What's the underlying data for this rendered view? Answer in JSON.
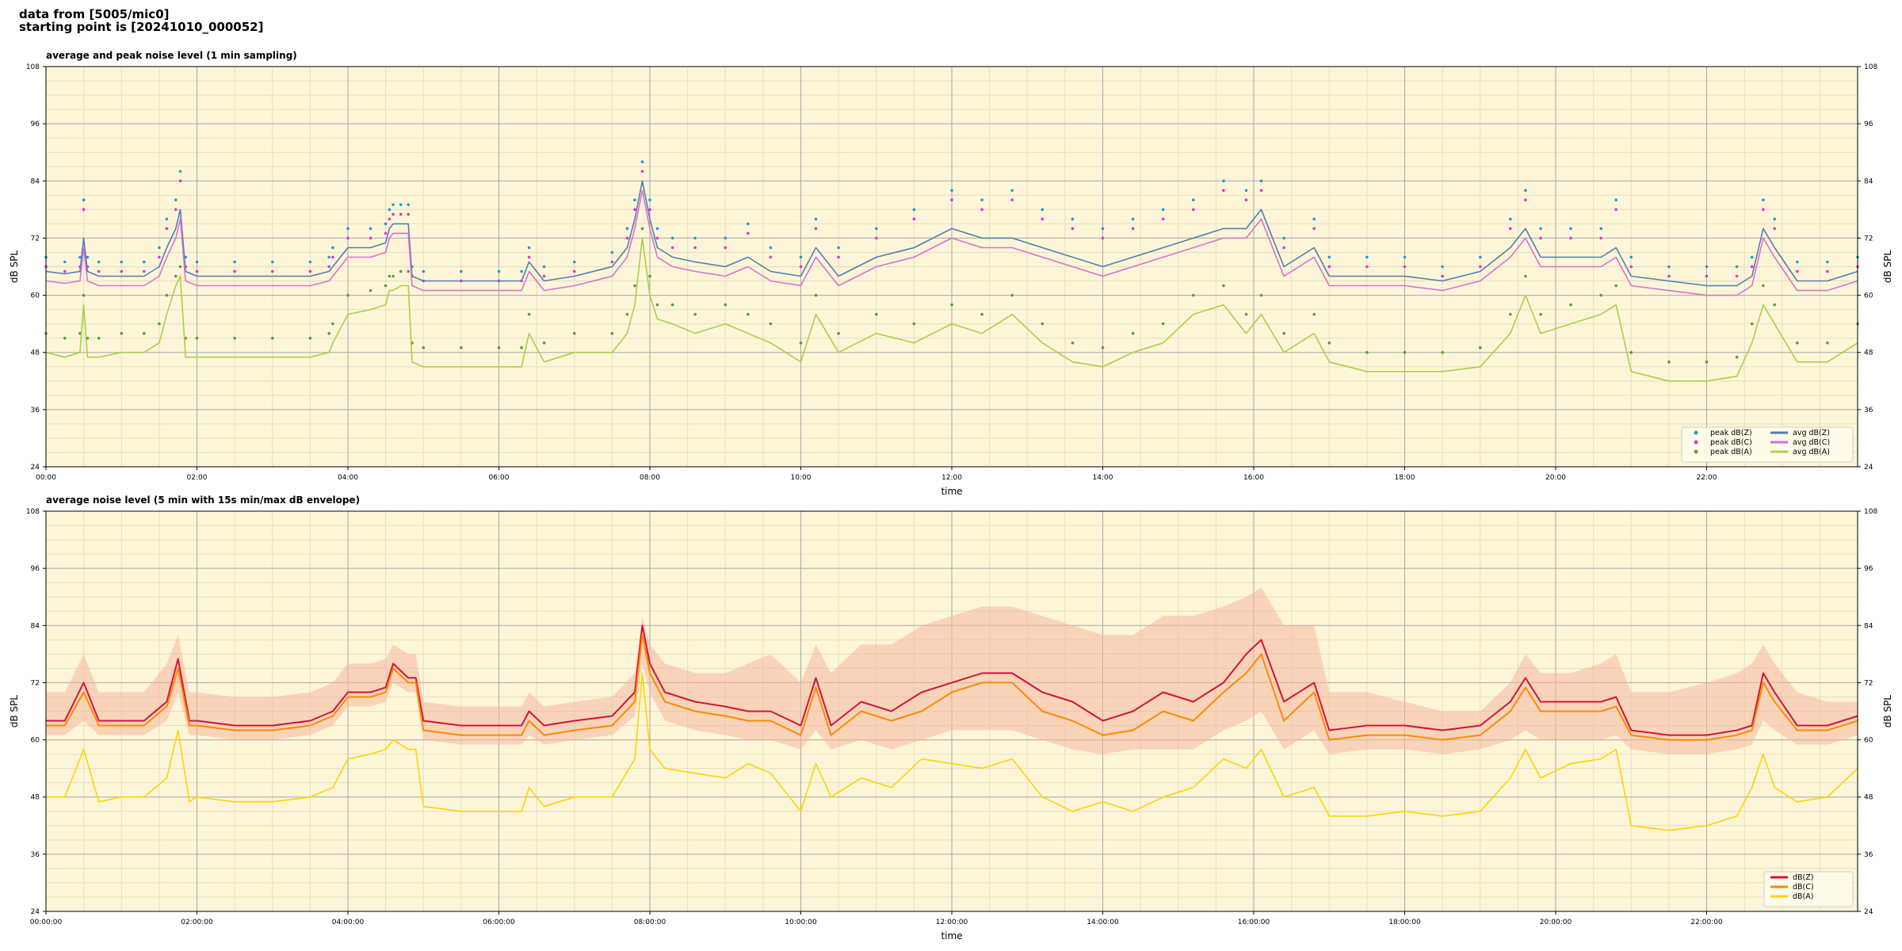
{
  "suptitle": {
    "line1": "data from [5005/mic0]",
    "line2": "starting point is [20241010_000052]"
  },
  "colors": {
    "plot_bg": "#fdf5d8",
    "grid_major": "#a8a8a8",
    "grid_minor": "#e6dcc0",
    "peak_z": "#1f9bd6",
    "peak_c": "#e531d0",
    "peak_a": "#5a9e3a",
    "avg_z": "#4f7fb2",
    "avg_c": "#d772cf",
    "avg_a": "#a8d145",
    "db_z": "#d2143a",
    "db_c": "#ff8a00",
    "db_a": "#ffd400",
    "envelope": "#f5b8a0"
  },
  "chart_data": [
    {
      "type": "line",
      "title": "average and peak noise level (1 min sampling)",
      "xlabel": "time",
      "ylabel": "dB SPL",
      "xlim": [
        0,
        24
      ],
      "ylim": [
        24,
        108
      ],
      "yticks": [
        24,
        36,
        48,
        60,
        72,
        84,
        96,
        108
      ],
      "xticks": [
        0,
        2,
        4,
        6,
        8,
        10,
        12,
        14,
        16,
        18,
        20,
        22
      ],
      "xtick_labels": [
        "00:00",
        "02:00",
        "04:00",
        "06:00",
        "08:00",
        "10:00",
        "12:00",
        "14:00",
        "16:00",
        "18:00",
        "20:00",
        "22:00"
      ],
      "grid": true,
      "legend_position": "lower-right",
      "legend": [
        "peak dB(Z)",
        "peak dB(C)",
        "peak dB(A)",
        "avg dB(Z)",
        "avg dB(C)",
        "avg dB(A)"
      ],
      "x": [
        0,
        0.25,
        0.45,
        0.5,
        0.55,
        0.7,
        1.0,
        1.3,
        1.5,
        1.6,
        1.72,
        1.78,
        1.85,
        2.0,
        2.5,
        3.0,
        3.5,
        3.75,
        3.8,
        4.0,
        4.3,
        4.5,
        4.55,
        4.6,
        4.7,
        4.8,
        4.85,
        5.0,
        5.5,
        6.0,
        6.3,
        6.4,
        6.6,
        7.0,
        7.5,
        7.7,
        7.8,
        7.9,
        8.0,
        8.1,
        8.3,
        8.6,
        9.0,
        9.3,
        9.6,
        10.0,
        10.2,
        10.5,
        11.0,
        11.5,
        12.0,
        12.4,
        12.8,
        13.2,
        13.6,
        14.0,
        14.4,
        14.8,
        15.2,
        15.6,
        15.9,
        16.1,
        16.4,
        16.8,
        17.0,
        17.5,
        18.0,
        18.5,
        19.0,
        19.4,
        19.6,
        19.8,
        20.2,
        20.6,
        20.8,
        21.0,
        21.5,
        22.0,
        22.4,
        22.6,
        22.75,
        22.9,
        23.2,
        23.6,
        24.0
      ],
      "series": [
        {
          "name": "avg dB(Z)",
          "values": [
            65,
            64.5,
            65,
            72,
            65,
            64,
            64,
            64,
            66,
            70,
            74,
            78,
            65,
            64,
            64,
            64,
            64,
            65,
            66,
            70,
            70,
            71,
            74,
            75,
            75,
            75,
            64,
            63,
            63,
            63,
            63,
            67,
            63,
            64,
            66,
            70,
            76,
            84,
            76,
            70,
            68,
            67,
            66,
            68,
            65,
            64,
            70,
            64,
            68,
            70,
            74,
            72,
            72,
            70,
            68,
            66,
            68,
            70,
            72,
            74,
            74,
            78,
            66,
            70,
            64,
            64,
            64,
            63,
            65,
            70,
            74,
            68,
            68,
            68,
            70,
            64,
            63,
            62,
            62,
            64,
            74,
            70,
            63,
            63,
            65
          ]
        },
        {
          "name": "avg dB(C)",
          "values": [
            63,
            62.5,
            63,
            70,
            63,
            62,
            62,
            62,
            64,
            68,
            72,
            76,
            63,
            62,
            62,
            62,
            62,
            63,
            64,
            68,
            68,
            69,
            72,
            73,
            73,
            73,
            62,
            61,
            61,
            61,
            61,
            65,
            61,
            62,
            64,
            68,
            74,
            82,
            74,
            68,
            66,
            65,
            64,
            66,
            63,
            62,
            68,
            62,
            66,
            68,
            72,
            70,
            70,
            68,
            66,
            64,
            66,
            68,
            70,
            72,
            72,
            76,
            64,
            68,
            62,
            62,
            62,
            61,
            63,
            68,
            72,
            66,
            66,
            66,
            68,
            62,
            61,
            60,
            60,
            62,
            72,
            68,
            61,
            61,
            63
          ]
        },
        {
          "name": "avg dB(A)",
          "values": [
            48,
            47,
            48,
            58,
            47,
            47,
            48,
            48,
            50,
            56,
            62,
            64,
            47,
            47,
            47,
            47,
            47,
            48,
            50,
            56,
            57,
            58,
            61,
            61,
            62,
            62,
            46,
            45,
            45,
            45,
            45,
            52,
            46,
            48,
            48,
            52,
            58,
            72,
            60,
            55,
            54,
            52,
            54,
            52,
            50,
            46,
            56,
            48,
            52,
            50,
            54,
            52,
            56,
            50,
            46,
            45,
            48,
            50,
            56,
            58,
            52,
            56,
            48,
            52,
            46,
            44,
            44,
            44,
            45,
            52,
            60,
            52,
            54,
            56,
            58,
            44,
            42,
            42,
            43,
            50,
            58,
            54,
            46,
            46,
            50
          ]
        },
        {
          "name": "peak dB(Z)",
          "values": [
            68,
            67,
            68,
            80,
            68,
            67,
            67,
            67,
            70,
            76,
            80,
            86,
            68,
            67,
            67,
            67,
            67,
            68,
            70,
            74,
            74,
            75,
            78,
            79,
            79,
            79,
            66,
            65,
            65,
            65,
            65,
            70,
            66,
            67,
            69,
            74,
            80,
            88,
            80,
            74,
            72,
            72,
            72,
            75,
            70,
            68,
            76,
            70,
            74,
            78,
            82,
            80,
            82,
            78,
            76,
            74,
            76,
            78,
            80,
            84,
            82,
            84,
            72,
            76,
            68,
            68,
            68,
            66,
            68,
            76,
            82,
            74,
            74,
            74,
            80,
            68,
            66,
            66,
            66,
            68,
            80,
            76,
            67,
            67,
            68
          ]
        },
        {
          "name": "peak dB(C)",
          "values": [
            66,
            65,
            66,
            78,
            66,
            65,
            65,
            65,
            68,
            74,
            78,
            84,
            66,
            65,
            65,
            65,
            65,
            66,
            68,
            72,
            72,
            73,
            76,
            77,
            77,
            77,
            64,
            63,
            63,
            63,
            63,
            68,
            64,
            65,
            67,
            72,
            78,
            86,
            78,
            72,
            70,
            70,
            70,
            73,
            68,
            66,
            74,
            68,
            72,
            76,
            80,
            78,
            80,
            76,
            74,
            72,
            74,
            76,
            78,
            82,
            80,
            82,
            70,
            74,
            66,
            66,
            66,
            64,
            66,
            74,
            80,
            72,
            72,
            72,
            78,
            66,
            64,
            64,
            64,
            66,
            78,
            74,
            65,
            65,
            66
          ]
        },
        {
          "name": "peak dB(A)",
          "values": [
            52,
            51,
            52,
            60,
            51,
            51,
            52,
            52,
            54,
            60,
            64,
            66,
            51,
            51,
            51,
            51,
            51,
            52,
            54,
            60,
            61,
            62,
            64,
            64,
            65,
            65,
            50,
            49,
            49,
            49,
            49,
            56,
            50,
            52,
            52,
            56,
            62,
            74,
            64,
            58,
            58,
            56,
            58,
            56,
            54,
            50,
            60,
            52,
            56,
            54,
            58,
            56,
            60,
            54,
            50,
            49,
            52,
            54,
            60,
            62,
            56,
            60,
            52,
            56,
            50,
            48,
            48,
            48,
            49,
            56,
            64,
            56,
            58,
            60,
            62,
            48,
            46,
            46,
            47,
            54,
            62,
            58,
            50,
            50,
            54
          ]
        }
      ]
    },
    {
      "type": "line",
      "title": "average noise level (5 min with 15s min/max dB envelope)",
      "xlabel": "time",
      "ylabel": "dB SPL",
      "xlim": [
        0,
        24
      ],
      "ylim": [
        24,
        108
      ],
      "yticks": [
        24,
        36,
        48,
        60,
        72,
        84,
        96,
        108
      ],
      "xticks": [
        0,
        2,
        4,
        6,
        8,
        10,
        12,
        14,
        16,
        18,
        20,
        22
      ],
      "xtick_labels": [
        "00:00:00",
        "02:00:00",
        "04:00:00",
        "06:00:00",
        "08:00:00",
        "10:00:00",
        "12:00:00",
        "14:00:00",
        "16:00:00",
        "18:00:00",
        "20:00:00",
        "22:00:00"
      ],
      "grid": true,
      "legend_position": "lower-right",
      "legend": [
        "dB(Z)",
        "dB(C)",
        "dB(A)"
      ],
      "x": [
        0,
        0.25,
        0.5,
        0.7,
        1.0,
        1.3,
        1.6,
        1.75,
        1.9,
        2.0,
        2.5,
        3.0,
        3.5,
        3.8,
        4.0,
        4.3,
        4.5,
        4.6,
        4.8,
        4.9,
        5.0,
        5.5,
        6.0,
        6.3,
        6.4,
        6.6,
        7.0,
        7.5,
        7.8,
        7.9,
        8.0,
        8.2,
        8.6,
        9.0,
        9.3,
        9.6,
        10.0,
        10.2,
        10.4,
        10.8,
        11.2,
        11.6,
        12.0,
        12.4,
        12.8,
        13.2,
        13.6,
        14.0,
        14.4,
        14.8,
        15.2,
        15.6,
        15.9,
        16.1,
        16.4,
        16.8,
        17.0,
        17.5,
        18.0,
        18.5,
        19.0,
        19.4,
        19.6,
        19.8,
        20.2,
        20.6,
        20.8,
        21.0,
        21.5,
        22.0,
        22.4,
        22.6,
        22.75,
        22.9,
        23.2,
        23.6,
        24.0
      ],
      "series": [
        {
          "name": "dB(Z)",
          "values": [
            64,
            64,
            72,
            64,
            64,
            64,
            68,
            77,
            64,
            64,
            63,
            63,
            64,
            66,
            70,
            70,
            71,
            76,
            73,
            73,
            64,
            63,
            63,
            63,
            66,
            63,
            64,
            65,
            70,
            84,
            76,
            70,
            68,
            67,
            66,
            66,
            63,
            73,
            63,
            68,
            66,
            70,
            72,
            74,
            74,
            70,
            68,
            64,
            66,
            70,
            68,
            72,
            78,
            81,
            68,
            72,
            62,
            63,
            63,
            62,
            63,
            68,
            73,
            68,
            68,
            68,
            69,
            62,
            61,
            61,
            62,
            63,
            74,
            70,
            63,
            63,
            65
          ]
        },
        {
          "name": "dB(C)",
          "values": [
            63,
            63,
            70,
            63,
            63,
            63,
            67,
            75,
            63,
            63,
            62,
            62,
            63,
            65,
            69,
            69,
            70,
            75,
            72,
            72,
            62,
            61,
            61,
            61,
            64,
            61,
            62,
            63,
            68,
            82,
            74,
            68,
            66,
            65,
            64,
            64,
            61,
            71,
            61,
            66,
            64,
            66,
            70,
            72,
            72,
            66,
            64,
            61,
            62,
            66,
            64,
            70,
            74,
            78,
            64,
            70,
            60,
            61,
            61,
            60,
            61,
            66,
            71,
            66,
            66,
            66,
            67,
            61,
            60,
            60,
            61,
            62,
            72,
            68,
            62,
            62,
            64
          ]
        },
        {
          "name": "dB(A)",
          "values": [
            48,
            48,
            58,
            47,
            48,
            48,
            52,
            62,
            47,
            48,
            47,
            47,
            48,
            50,
            56,
            57,
            58,
            60,
            58,
            58,
            46,
            45,
            45,
            45,
            50,
            46,
            48,
            48,
            56,
            74,
            58,
            54,
            53,
            52,
            55,
            53,
            45,
            55,
            48,
            52,
            50,
            56,
            55,
            54,
            56,
            48,
            45,
            47,
            45,
            48,
            50,
            56,
            54,
            58,
            48,
            50,
            44,
            44,
            45,
            44,
            45,
            52,
            58,
            52,
            55,
            56,
            58,
            42,
            41,
            42,
            44,
            50,
            57,
            50,
            47,
            48,
            54
          ]
        },
        {
          "name": "max envelope",
          "values": [
            70,
            70,
            78,
            70,
            70,
            70,
            76,
            82,
            70,
            70,
            69,
            69,
            70,
            72,
            76,
            76,
            77,
            80,
            78,
            78,
            68,
            67,
            67,
            67,
            70,
            67,
            68,
            69,
            74,
            86,
            80,
            76,
            74,
            74,
            76,
            78,
            72,
            80,
            74,
            80,
            80,
            84,
            86,
            88,
            88,
            86,
            84,
            82,
            82,
            86,
            86,
            88,
            90,
            92,
            84,
            84,
            70,
            70,
            68,
            66,
            66,
            72,
            78,
            74,
            74,
            76,
            78,
            70,
            70,
            72,
            74,
            76,
            80,
            76,
            70,
            68,
            68
          ]
        },
        {
          "name": "min envelope",
          "values": [
            61,
            61,
            64,
            61,
            61,
            61,
            64,
            70,
            61,
            61,
            60,
            60,
            61,
            63,
            67,
            67,
            68,
            72,
            70,
            70,
            60,
            59,
            59,
            59,
            61,
            59,
            60,
            61,
            65,
            76,
            70,
            64,
            62,
            61,
            60,
            60,
            58,
            62,
            58,
            60,
            58,
            60,
            62,
            62,
            62,
            60,
            58,
            57,
            58,
            58,
            58,
            62,
            64,
            66,
            58,
            62,
            57,
            58,
            58,
            57,
            58,
            60,
            62,
            60,
            60,
            60,
            61,
            58,
            57,
            57,
            58,
            59,
            64,
            62,
            59,
            59,
            61
          ]
        }
      ]
    }
  ]
}
